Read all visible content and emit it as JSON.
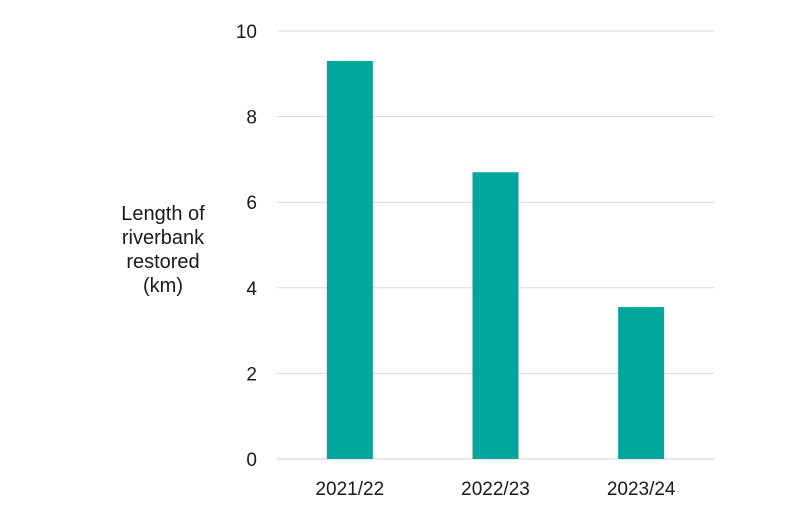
{
  "chart_data": {
    "type": "bar",
    "title": "",
    "xlabel": "",
    "ylabel": "Length of riverbank restored (km)",
    "ylabel_lines": [
      "Length of",
      "riverbank",
      "restored",
      "(km)"
    ],
    "categories": [
      "2021/22",
      "2022/23",
      "2023/24"
    ],
    "values": [
      9.3,
      6.7,
      3.55
    ],
    "ylim": [
      0,
      10
    ],
    "yticks": [
      "0",
      "2",
      "4",
      "6",
      "8",
      "10"
    ],
    "grid": true,
    "legend": "none",
    "bar_color": "#00a79a"
  }
}
